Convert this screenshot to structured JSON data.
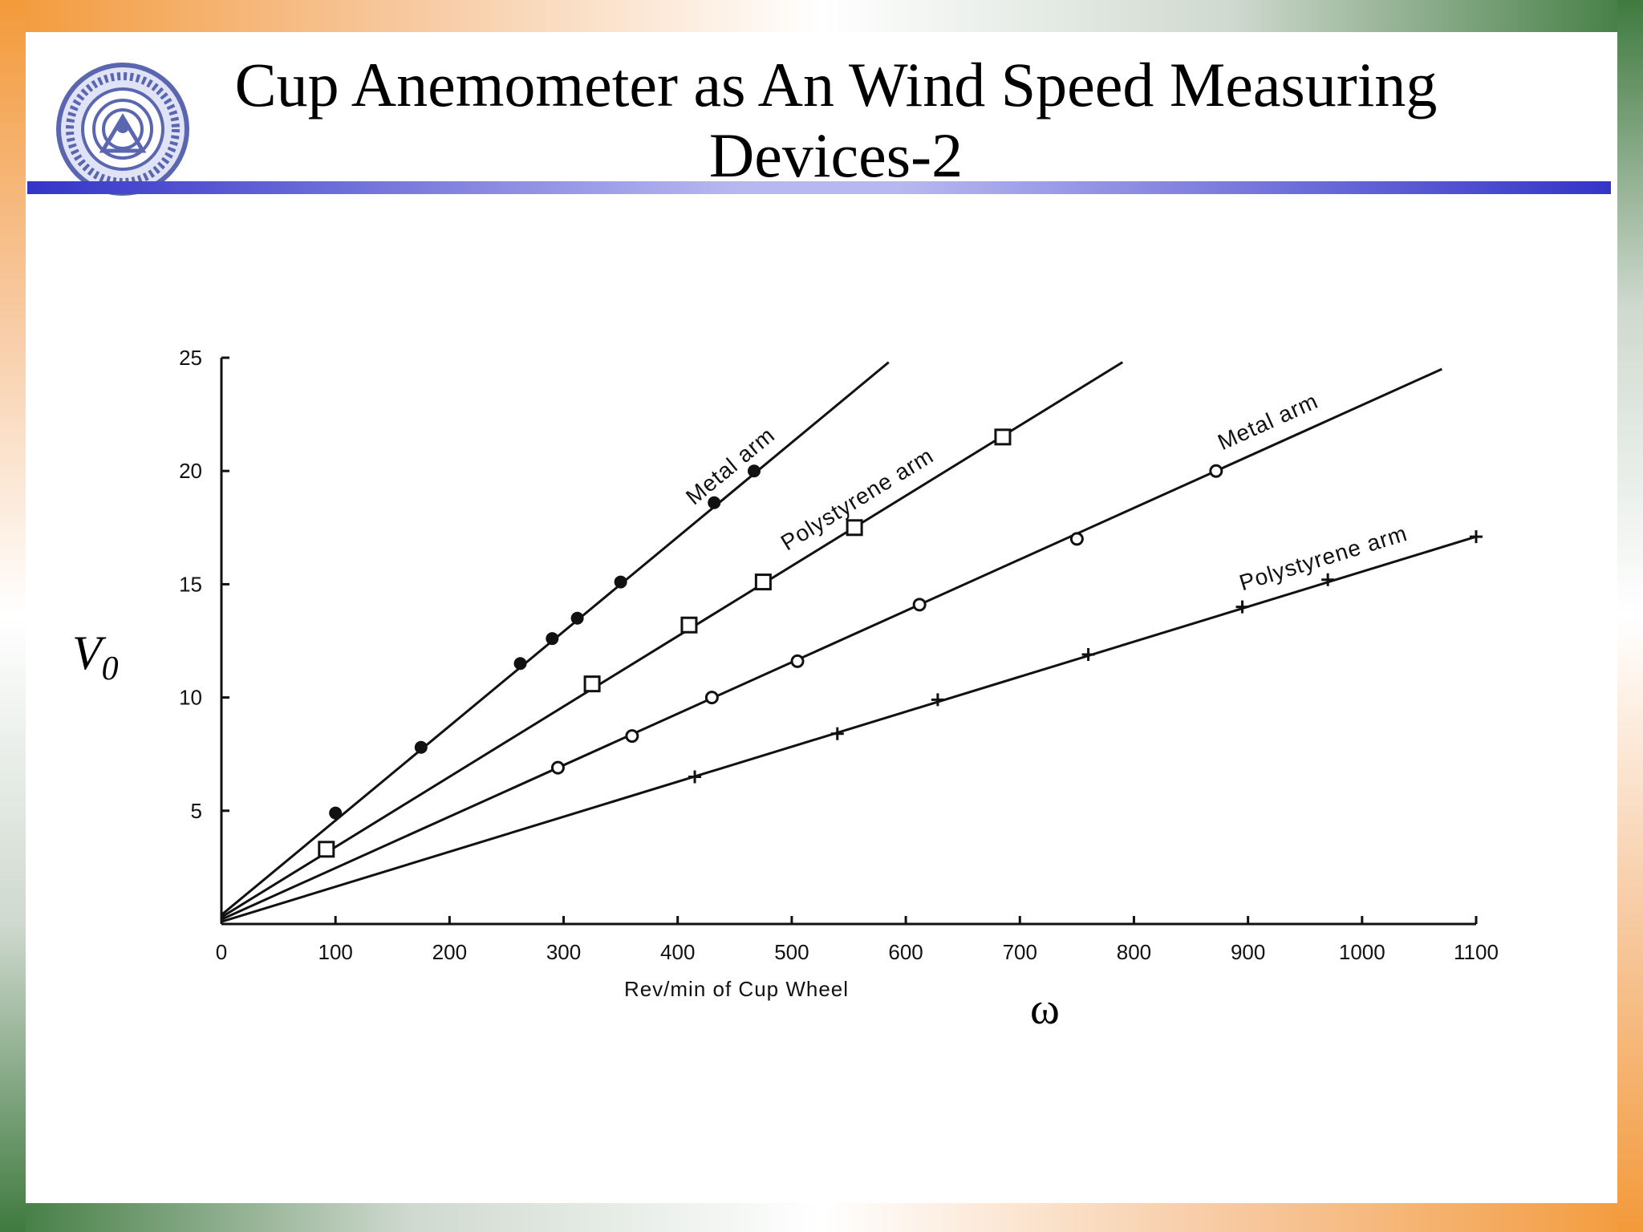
{
  "slide": {
    "title_line1": "Cup Anemometer as An Wind Speed Measuring",
    "title_line2": "Devices-2",
    "y_symbol": "V",
    "y_symbol_sub": "0",
    "x_symbol": "ω",
    "logo_icon": "institute-seal-icon",
    "colors": {
      "accent_rule": "#3434c8",
      "border_saffron": "#f39a3a",
      "border_green": "#3f7a3f"
    }
  },
  "chart_data": {
    "type": "line",
    "title": "",
    "xlabel": "Rev/min of Cup Wheel",
    "ylabel": "",
    "xlim": [
      0,
      1100
    ],
    "ylim": [
      0,
      25
    ],
    "xticks": [
      0,
      100,
      200,
      300,
      400,
      500,
      600,
      700,
      800,
      900,
      1000,
      1100
    ],
    "yticks": [
      5,
      10,
      15,
      20,
      25
    ],
    "grid": false,
    "legend": "none",
    "series": [
      {
        "name": "Metal arm",
        "marker": "filled-circle",
        "line": [
          [
            0,
            0.4
          ],
          [
            585,
            24.8
          ]
        ],
        "points": [
          [
            100,
            4.9
          ],
          [
            175,
            7.8
          ],
          [
            262,
            11.5
          ],
          [
            290,
            12.6
          ],
          [
            312,
            13.5
          ],
          [
            350,
            15.1
          ],
          [
            432,
            18.6
          ],
          [
            467,
            20.0
          ]
        ]
      },
      {
        "name": "Polystyrene arm",
        "marker": "square",
        "line": [
          [
            0,
            0.3
          ],
          [
            790,
            24.8
          ]
        ],
        "points": [
          [
            92,
            3.3
          ],
          [
            325,
            10.6
          ],
          [
            410,
            13.2
          ],
          [
            475,
            15.1
          ],
          [
            555,
            17.5
          ],
          [
            685,
            21.5
          ]
        ]
      },
      {
        "name": "Metal arm",
        "marker": "open-circle",
        "line": [
          [
            0,
            0.2
          ],
          [
            1070,
            24.5
          ]
        ],
        "points": [
          [
            295,
            6.9
          ],
          [
            360,
            8.3
          ],
          [
            430,
            10.0
          ],
          [
            505,
            11.6
          ],
          [
            612,
            14.1
          ],
          [
            750,
            17.0
          ],
          [
            872,
            20.0
          ]
        ]
      },
      {
        "name": "Polystyrene arm",
        "marker": "plus",
        "line": [
          [
            0,
            0.1
          ],
          [
            1100,
            17.1
          ]
        ],
        "points": [
          [
            415,
            6.5
          ],
          [
            540,
            8.4
          ],
          [
            628,
            9.9
          ],
          [
            760,
            11.9
          ],
          [
            895,
            14.0
          ],
          [
            970,
            15.2
          ],
          [
            1100,
            17.1
          ]
        ]
      }
    ]
  }
}
